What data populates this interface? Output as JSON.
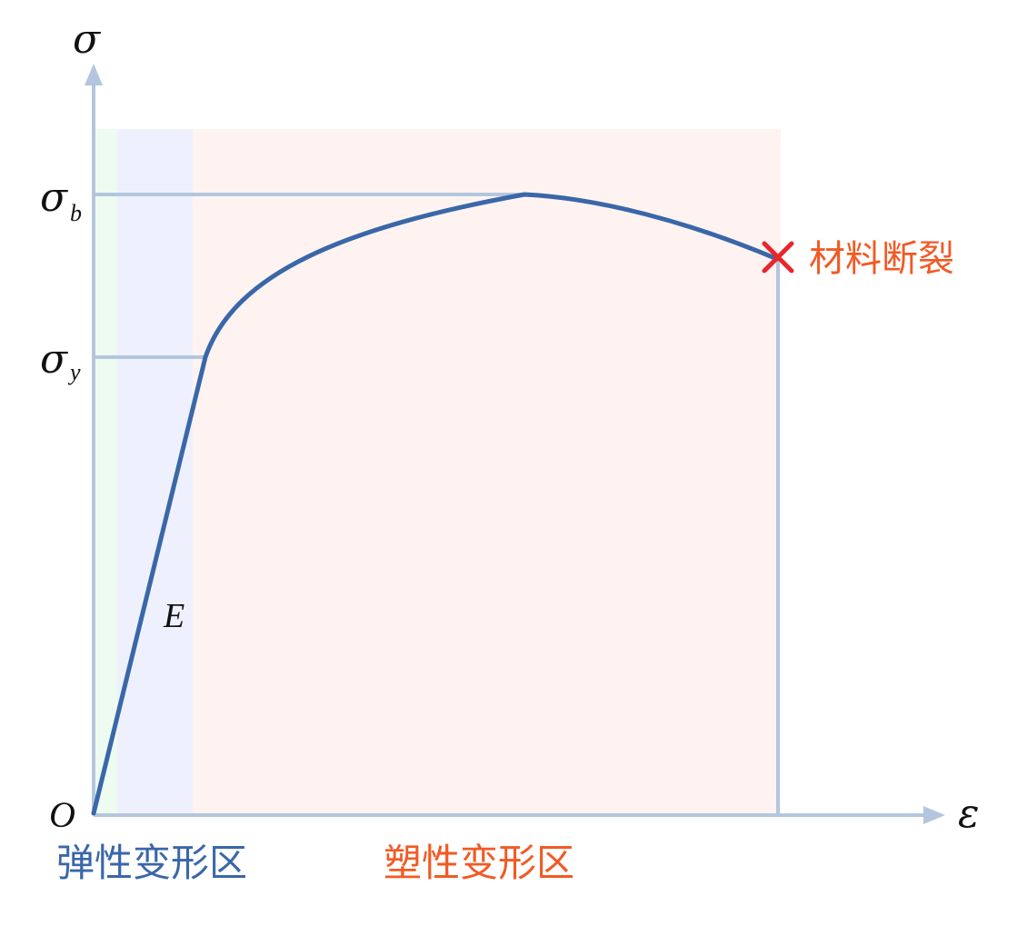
{
  "labels": {
    "y_axis": "σ",
    "x_axis": "ε",
    "origin": "O",
    "sigma_b_main": "σ",
    "sigma_b_sub": "b",
    "sigma_y_main": "σ",
    "sigma_y_sub": "y",
    "modulus": "E",
    "fracture": "材料断裂",
    "elastic_region": "弹性变形区",
    "plastic_region": "塑性变形区"
  },
  "colors": {
    "axis": "#b3c6dd",
    "curve": "#3a67a8",
    "fracture_mark": "#e8262b",
    "fracture_text": "#f25a24",
    "elastic_text": "#3a67a8",
    "plastic_text": "#f25a24",
    "elastic_band": "#eef1fd",
    "elastic_band_strip": "#eefbf1",
    "plastic_band": "#fff3f2"
  }
}
